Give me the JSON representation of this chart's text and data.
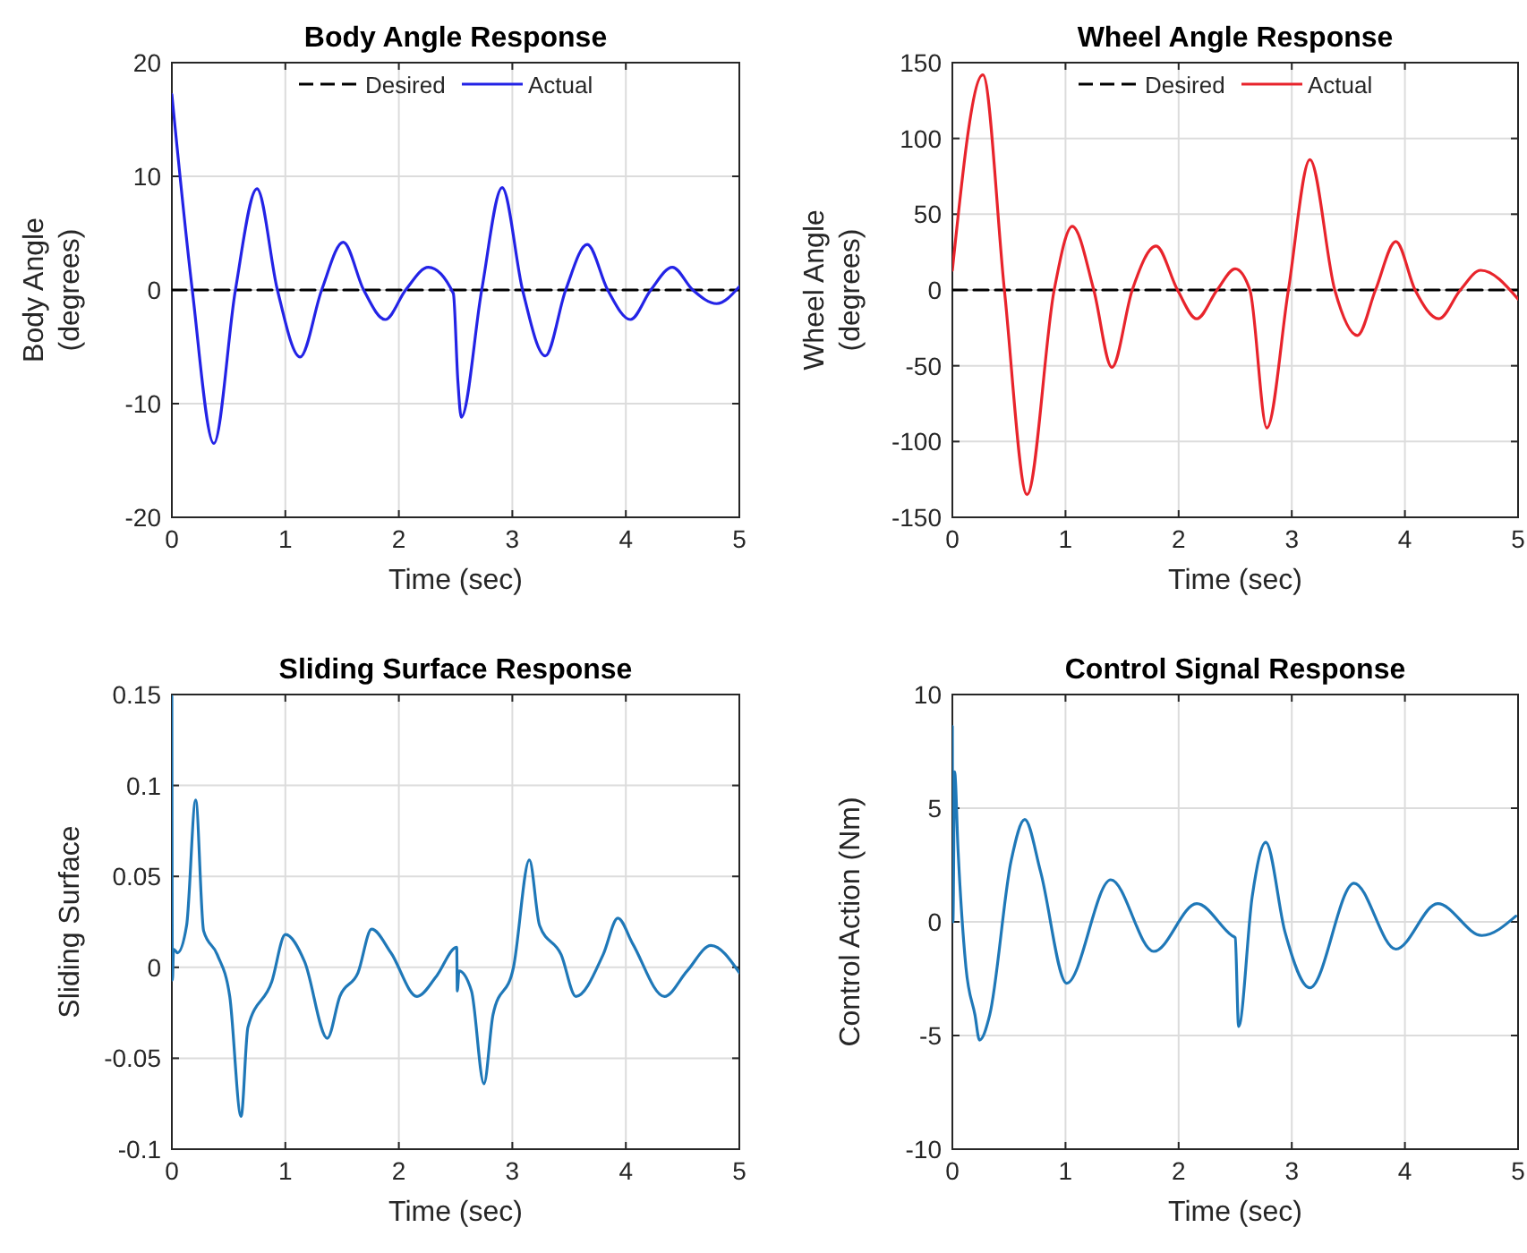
{
  "chart_data": [
    {
      "type": "line",
      "title": "Body Angle Response",
      "xlabel": "Time (sec)",
      "ylabel": "Body Angle\n(degrees)",
      "xlim": [
        0,
        5
      ],
      "ylim": [
        -20,
        20
      ],
      "xticks": [
        0,
        1,
        2,
        3,
        4,
        5
      ],
      "yticks": [
        -20,
        -10,
        0,
        10,
        20
      ],
      "grid": true,
      "legend": "top",
      "series": [
        {
          "name": "Desired",
          "color": "#000000",
          "line_style": "dashed",
          "x": [
            0,
            5
          ],
          "values": [
            0,
            0
          ]
        },
        {
          "name": "Actual",
          "color": "#2323e6",
          "line_style": "solid",
          "x": [
            0,
            0.18,
            0.37,
            0.56,
            0.75,
            0.93,
            1.13,
            1.32,
            1.51,
            1.69,
            1.88,
            2.06,
            2.26,
            2.48,
            2.52,
            2.55,
            2.73,
            2.91,
            3.09,
            3.29,
            3.47,
            3.66,
            3.84,
            4.04,
            4.22,
            4.41,
            4.59,
            4.8,
            5
          ],
          "values": [
            17.2,
            0,
            -13.5,
            0,
            8.9,
            0,
            -5.9,
            0,
            4.2,
            0,
            -2.6,
            0,
            2,
            -0.3,
            -8,
            -11.2,
            0,
            9,
            0,
            -5.8,
            0,
            4,
            0,
            -2.6,
            0,
            2,
            0,
            -1.2,
            0.3
          ]
        }
      ]
    },
    {
      "type": "line",
      "title": "Wheel Angle Response",
      "xlabel": "Time (sec)",
      "ylabel": "Wheel Angle\n(degrees)",
      "xlim": [
        0,
        5
      ],
      "ylim": [
        -150,
        150
      ],
      "xticks": [
        0,
        1,
        2,
        3,
        4,
        5
      ],
      "yticks": [
        -150,
        -100,
        -50,
        0,
        50,
        100,
        150
      ],
      "grid": true,
      "legend": "top",
      "series": [
        {
          "name": "Desired",
          "color": "#000000",
          "line_style": "dashed",
          "x": [
            0,
            5
          ],
          "values": [
            0,
            0
          ]
        },
        {
          "name": "Actual",
          "color": "#e8242c",
          "line_style": "solid",
          "x": [
            0,
            0.27,
            0.46,
            0.66,
            0.9,
            1.06,
            1.25,
            1.41,
            1.59,
            1.8,
            1.99,
            2.16,
            2.34,
            2.5,
            2.63,
            2.78,
            2.97,
            3.16,
            3.38,
            3.58,
            3.74,
            3.92,
            4.09,
            4.3,
            4.49,
            4.67,
            5
          ],
          "values": [
            13,
            142,
            0,
            -135,
            0,
            42,
            0,
            -51,
            0,
            29,
            0,
            -19,
            0,
            14,
            0,
            -91,
            0,
            86,
            0,
            -30,
            0,
            32,
            0,
            -19,
            0,
            13,
            -6
          ]
        }
      ]
    },
    {
      "type": "line",
      "title": "Sliding Surface Response",
      "xlabel": "Time (sec)",
      "ylabel": "Sliding Surface",
      "xlim": [
        0,
        5
      ],
      "ylim": [
        -0.1,
        0.15
      ],
      "xticks": [
        0,
        1,
        2,
        3,
        4,
        5
      ],
      "yticks": [
        -0.1,
        -0.05,
        0,
        0.05,
        0.1,
        0.15
      ],
      "grid": true,
      "series": [
        {
          "color": "#1f78b8",
          "line_style": "solid",
          "x": [
            0,
            0.005,
            0.015,
            0.05,
            0.13,
            0.21,
            0.28,
            0.4,
            0.51,
            0.61,
            0.67,
            0.88,
            1,
            1.17,
            1.37,
            1.48,
            1.64,
            1.76,
            1.93,
            2.16,
            2.33,
            2.51,
            2.515,
            2.53,
            2.64,
            2.75,
            2.83,
            3.01,
            3.15,
            3.24,
            3.43,
            3.56,
            3.8,
            3.93,
            4.06,
            4.34,
            4.54,
            4.75,
            5
          ],
          "values": [
            0.149,
            -0.007,
            0.01,
            0.008,
            0.023,
            0.092,
            0.02,
            0.007,
            -0.016,
            -0.082,
            -0.033,
            -0.008,
            0.018,
            0.003,
            -0.039,
            -0.016,
            -0.003,
            0.021,
            0.008,
            -0.016,
            -0.005,
            0.011,
            -0.013,
            -0.002,
            -0.013,
            -0.064,
            -0.026,
            0,
            0.059,
            0.023,
            0.007,
            -0.016,
            0.007,
            0.027,
            0.013,
            -0.016,
            -0.002,
            0.012,
            -0.003
          ]
        }
      ]
    },
    {
      "type": "line",
      "title": "Control Signal Response",
      "xlabel": "Time (sec)",
      "ylabel": "Control Action (Nm)",
      "xlim": [
        0,
        5
      ],
      "ylim": [
        -10,
        10
      ],
      "xticks": [
        0,
        1,
        2,
        3,
        4,
        5
      ],
      "yticks": [
        -10,
        -5,
        0,
        5,
        10
      ],
      "grid": true,
      "series": [
        {
          "color": "#1f78b8",
          "line_style": "solid",
          "x": [
            0,
            0.005,
            0.02,
            0.05,
            0.12,
            0.2,
            0.24,
            0.33,
            0.52,
            0.64,
            0.78,
            1.01,
            1.4,
            1.78,
            2.16,
            2.47,
            2.5,
            2.53,
            2.65,
            2.77,
            2.94,
            3.16,
            3.55,
            3.92,
            4.29,
            4.68,
            4.98
          ],
          "values": [
            8.6,
            0,
            6.6,
            3.2,
            -2,
            -4.1,
            -5.2,
            -4.1,
            2.7,
            4.5,
            2.2,
            -2.7,
            1.85,
            -1.3,
            0.8,
            -0.6,
            -0.7,
            -4.6,
            1.1,
            3.5,
            -0.45,
            -2.9,
            1.7,
            -1.2,
            0.8,
            -0.6,
            0.25
          ]
        }
      ]
    }
  ]
}
